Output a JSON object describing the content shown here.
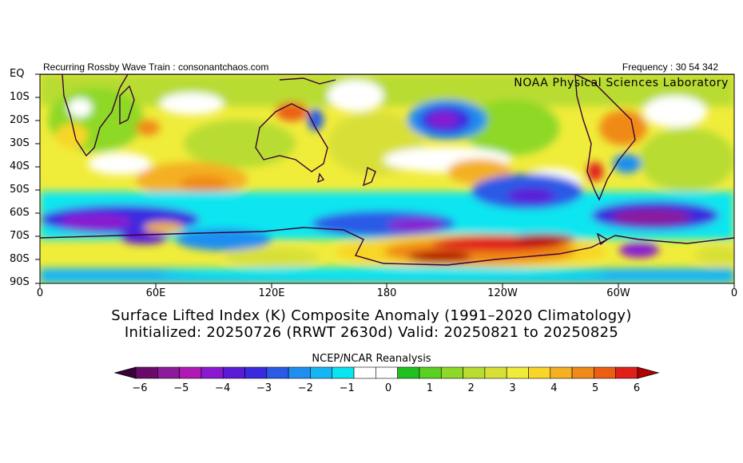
{
  "header": {
    "left_text": "Recurring Rossby Wave Train : consonantchaos.com",
    "right_text": "Frequency : 30 54 342",
    "lab_text": "NOAA Physical Sciences Laboratory"
  },
  "map": {
    "y_axis_labels": [
      "EQ",
      "10S",
      "20S",
      "30S",
      "40S",
      "50S",
      "60S",
      "70S",
      "80S",
      "90S"
    ],
    "x_axis_labels": [
      "0",
      "60E",
      "120E",
      "180",
      "120W",
      "60W",
      "0"
    ]
  },
  "title": {
    "line1": "Surface Lifted Index (K) Composite Anomaly (1991–2020 Climatology)",
    "line2": "Initialized: 20250726 (RRWT 2630d) Valid: 20250821 to 20250825"
  },
  "colorbar": {
    "title": "NCEP/NCAR Reanalysis",
    "labels": [
      "−6",
      "−5",
      "−4",
      "−3",
      "−2",
      "−1",
      "0",
      "1",
      "2",
      "3",
      "4",
      "5",
      "6"
    ],
    "colors": [
      "#3a0038",
      "#6a0a6a",
      "#8c1a9a",
      "#b01ab4",
      "#8a1ad0",
      "#5a1ad8",
      "#3a2ae0",
      "#2a5ae6",
      "#1f8ef0",
      "#16b6f4",
      "#0ae6f0",
      "#ffffff",
      "#ffffff",
      "#20c020",
      "#5ad020",
      "#8ed828",
      "#b8dc30",
      "#d8e038",
      "#f0ec3a",
      "#f8d628",
      "#f4b020",
      "#f08a18",
      "#ec5e12",
      "#e01f1a",
      "#b20000"
    ]
  }
}
